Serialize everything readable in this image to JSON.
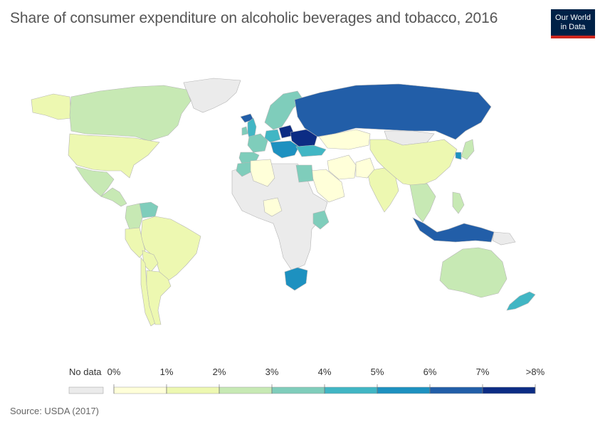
{
  "title": "Share of consumer expenditure on alcoholic beverages and tobacco, 2016",
  "logo": {
    "line1": "Our World",
    "line2": "in Data"
  },
  "source": "Source: USDA (2017)",
  "legend": {
    "no_data_label": "No data",
    "no_data_color": "#ebebeb",
    "ticks": [
      "0%",
      "1%",
      "2%",
      "3%",
      "4%",
      "5%",
      "6%",
      "7%",
      ">8%"
    ],
    "bins": [
      "#ffffd9",
      "#edf8b1",
      "#c7e9b4",
      "#7fcdbb",
      "#41b6c4",
      "#1d91c0",
      "#225ea8",
      "#0c2c84"
    ]
  },
  "map": {
    "border_color": "#b5b5b5",
    "regions": [
      {
        "name": "Greenland",
        "bin": -1
      },
      {
        "name": "Canada",
        "bin": 2
      },
      {
        "name": "United States",
        "bin": 1
      },
      {
        "name": "Alaska",
        "bin": 1
      },
      {
        "name": "Mexico",
        "bin": 2
      },
      {
        "name": "Central America",
        "bin": 2
      },
      {
        "name": "Venezuela",
        "bin": 3
      },
      {
        "name": "Colombia",
        "bin": 2
      },
      {
        "name": "Brazil",
        "bin": 1
      },
      {
        "name": "Peru",
        "bin": 1
      },
      {
        "name": "Bolivia",
        "bin": 1
      },
      {
        "name": "Chile",
        "bin": 1
      },
      {
        "name": "Argentina",
        "bin": 1
      },
      {
        "name": "Iceland",
        "bin": 6
      },
      {
        "name": "Ireland",
        "bin": 3
      },
      {
        "name": "United Kingdom",
        "bin": 4
      },
      {
        "name": "Spain",
        "bin": 3
      },
      {
        "name": "France",
        "bin": 3
      },
      {
        "name": "Germany",
        "bin": 4
      },
      {
        "name": "Scandinavia",
        "bin": 3
      },
      {
        "name": "Poland",
        "bin": 7
      },
      {
        "name": "Ukraine",
        "bin": 7
      },
      {
        "name": "Balkans",
        "bin": 5
      },
      {
        "name": "Turkey",
        "bin": 4
      },
      {
        "name": "Russia",
        "bin": 6
      },
      {
        "name": "Kazakhstan",
        "bin": 0
      },
      {
        "name": "Mongolia",
        "bin": -1
      },
      {
        "name": "China",
        "bin": 1
      },
      {
        "name": "Japan",
        "bin": 2
      },
      {
        "name": "South Korea",
        "bin": 5
      },
      {
        "name": "India",
        "bin": 1
      },
      {
        "name": "Pakistan",
        "bin": 0
      },
      {
        "name": "Iran",
        "bin": 0
      },
      {
        "name": "Saudi Arabia",
        "bin": 0
      },
      {
        "name": "Morocco",
        "bin": 3
      },
      {
        "name": "Algeria",
        "bin": 0
      },
      {
        "name": "Egypt",
        "bin": 3
      },
      {
        "name": "Nigeria",
        "bin": 0
      },
      {
        "name": "Kenya",
        "bin": 3
      },
      {
        "name": "South Africa",
        "bin": 5
      },
      {
        "name": "Rest of Africa",
        "bin": -1
      },
      {
        "name": "Southeast Asia",
        "bin": 2
      },
      {
        "name": "Philippines",
        "bin": 2
      },
      {
        "name": "Indonesia",
        "bin": 6
      },
      {
        "name": "Papua New Guinea",
        "bin": -1
      },
      {
        "name": "Australia",
        "bin": 2
      },
      {
        "name": "New Zealand",
        "bin": 4
      }
    ]
  }
}
